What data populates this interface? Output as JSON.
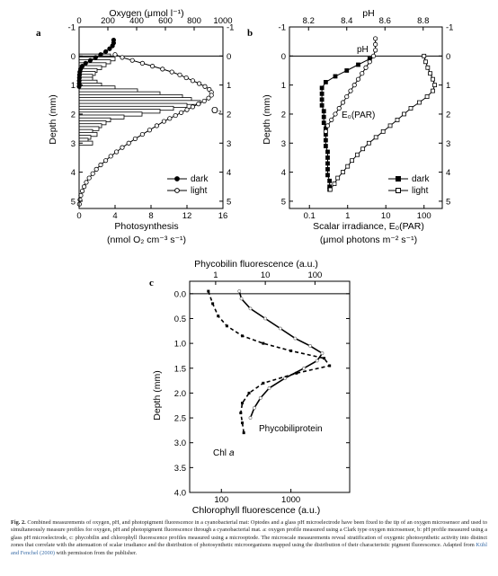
{
  "panels": {
    "a": {
      "label": "a",
      "top_axis_label": "Oxygen (μmol l⁻¹)",
      "bottom_axis_label_line1": "Photosynthesis",
      "bottom_axis_label_line2": "(nmol O₂ cm⁻³ s⁻¹)",
      "y_axis_label": "Depth (mm)",
      "annotation_o2": "O₂",
      "legend": [
        {
          "name": "dark",
          "marker": "filled"
        },
        {
          "name": "light",
          "marker": "open"
        }
      ],
      "chart_data": {
        "type": "line",
        "y_reversed": true,
        "ylim": [
          -1,
          5.25
        ],
        "y_ticks": [
          -1,
          0,
          1,
          2,
          3,
          4,
          5
        ],
        "x_top": {
          "label": "Oxygen (μmol l⁻¹)",
          "range": [
            0,
            1000
          ],
          "ticks": [
            0,
            200,
            400,
            600,
            800,
            1000
          ]
        },
        "x_bottom": {
          "label": "Photosynthesis (nmol O₂ cm⁻³ s⁻¹)",
          "range": [
            0,
            16
          ],
          "ticks": [
            0,
            4,
            8,
            12,
            16
          ]
        },
        "series": [
          {
            "name": "dark",
            "axis": "top",
            "marker": "filled",
            "depth": [
              -0.55,
              -0.45,
              -0.35,
              -0.25,
              -0.15,
              -0.05,
              0.05,
              0.15,
              0.25,
              0.35,
              0.45,
              0.55,
              0.65,
              0.75,
              0.85,
              0.95,
              1.05
            ],
            "value": [
              240,
              240,
              232,
              212,
              185,
              150,
              115,
              78,
              45,
              22,
              10,
              5,
              3,
              2,
              1,
              1,
              0
            ]
          },
          {
            "name": "light",
            "axis": "top",
            "marker": "open",
            "depth": [
              -0.05,
              0.05,
              0.15,
              0.25,
              0.35,
              0.45,
              0.55,
              0.65,
              0.75,
              0.85,
              0.95,
              1.05,
              1.15,
              1.25,
              1.35,
              1.45,
              1.55,
              1.65,
              1.75,
              1.85,
              1.95,
              2.05,
              2.15,
              2.25,
              2.4,
              2.55,
              2.7,
              2.85,
              3.0,
              3.15,
              3.3,
              3.45,
              3.6,
              3.75,
              3.9,
              4.05,
              4.2,
              4.35,
              4.5,
              4.65,
              4.8,
              4.95,
              5.1
            ],
            "value": [
              250,
              300,
              370,
              440,
              510,
              580,
              645,
              700,
              745,
              790,
              835,
              875,
              905,
              920,
              920,
              900,
              870,
              830,
              790,
              750,
              710,
              670,
              630,
              590,
              540,
              490,
              440,
              390,
              345,
              300,
              260,
              220,
              185,
              150,
              120,
              95,
              70,
              50,
              35,
              22,
              12,
              6,
              2
            ]
          },
          {
            "name": "Photosynthesis",
            "axis": "bottom",
            "type": "bar",
            "depth": [
              0,
              0.1,
              0.2,
              0.3,
              0.4,
              0.5,
              0.6,
              0.7,
              0.8,
              0.9,
              1.0,
              1.1,
              1.2,
              1.3,
              1.4,
              1.5,
              1.6,
              1.7,
              1.8,
              1.9,
              2.0,
              2.1,
              2.2,
              2.3,
              2.4,
              2.5,
              2.6,
              2.7,
              2.8,
              2.9,
              3.0
            ],
            "value": [
              3.5,
              4.0,
              3.5,
              3.0,
              2.5,
              2.0,
              1.8,
              1.5,
              1.5,
              2.0,
              2.5,
              4.0,
              6.5,
              9.0,
              11.5,
              12.5,
              13.5,
              12.0,
              10.5,
              9.0,
              7.0,
              5.0,
              3.5,
              3.0,
              2.5,
              2.2,
              1.5,
              2.0,
              1.3,
              1.0,
              1.5
            ]
          }
        ]
      }
    },
    "b": {
      "label": "b",
      "top_axis_label": "pH",
      "bottom_axis_label_line1": "Scalar irradiance, E₀(PAR)",
      "bottom_axis_label_line2": "(μmol photons m⁻² s⁻¹)",
      "y_axis_label": "Depth (mm)",
      "annotation_ph": "pH",
      "annotation_e0": "E₀(PAR)",
      "legend": [
        {
          "name": "dark",
          "marker": "filled"
        },
        {
          "name": "light",
          "marker": "open"
        }
      ],
      "chart_data": {
        "type": "line",
        "y_reversed": true,
        "ylim": [
          -1,
          5.25
        ],
        "y_ticks": [
          -1,
          0,
          1,
          2,
          3,
          4,
          5
        ],
        "x_top": {
          "label": "pH",
          "range": [
            8.1,
            8.9
          ],
          "ticks": [
            8.2,
            8.4,
            8.6,
            8.8
          ]
        },
        "x_bottom": {
          "label": "Scalar irradiance, E₀(PAR) (μmol photons m⁻² s⁻¹)",
          "scale": "log",
          "range": [
            0.03,
            300
          ],
          "tick_labels": [
            "0.1",
            "1",
            "10",
            "100"
          ],
          "tick_values": [
            0.1,
            1,
            10,
            100
          ]
        },
        "series": [
          {
            "name": "pH dark",
            "axis": "top",
            "marker": "filled",
            "depth": [
              0.1,
              0.3,
              0.5,
              0.7,
              0.9,
              1.1,
              1.3,
              1.5,
              1.7,
              1.9,
              2.1,
              2.3,
              2.5,
              2.7,
              2.9,
              3.1,
              3.3,
              3.5,
              3.7,
              3.9,
              4.1,
              4.3,
              4.5,
              4.6
            ],
            "value": [
              8.52,
              8.46,
              8.4,
              8.34,
              8.29,
              8.27,
              8.27,
              8.27,
              8.27,
              8.28,
              8.28,
              8.28,
              8.29,
              8.29,
              8.29,
              8.29,
              8.3,
              8.3,
              8.3,
              8.3,
              8.3,
              8.31,
              8.31,
              8.31
            ]
          },
          {
            "name": "pH light",
            "axis": "top",
            "marker": "open",
            "depth": [
              -0.6,
              -0.4,
              -0.2,
              0.0,
              0.2,
              0.4,
              0.6,
              0.8,
              1.0,
              1.2,
              1.4,
              1.6,
              1.8,
              2.0,
              2.2,
              2.4,
              2.6
            ],
            "value": [
              8.55,
              8.55,
              8.55,
              8.54,
              8.52,
              8.5,
              8.48,
              8.46,
              8.44,
              8.42,
              8.4,
              8.38,
              8.36,
              8.34,
              8.32,
              8.3,
              8.29
            ]
          },
          {
            "name": "E0(PAR)",
            "axis": "bottom",
            "marker": "open",
            "depth": [
              0.0,
              0.2,
              0.4,
              0.6,
              0.8,
              1.0,
              1.2,
              1.4,
              1.6,
              1.8,
              2.0,
              2.2,
              2.4,
              2.6,
              2.8,
              3.0,
              3.2,
              3.4,
              3.6,
              3.8,
              4.0,
              4.2,
              4.4,
              4.6
            ],
            "value": [
              100,
              110,
              125,
              145,
              170,
              190,
              170,
              120,
              75,
              45,
              30,
              20,
              13,
              8.5,
              5.5,
              3.6,
              2.5,
              1.8,
              1.3,
              1.0,
              0.75,
              0.55,
              0.45,
              0.35
            ]
          }
        ]
      }
    },
    "c": {
      "label": "c",
      "top_axis_label": "Phycobilin fluorescence (a.u.)",
      "bottom_axis_label": "Chlorophyll fluorescence (a.u.)",
      "y_axis_label": "Depth (mm)",
      "annotation_phyco": "Phycobiliprotein",
      "annotation_chl": "Chl",
      "annotation_chl_italic": "a",
      "chart_data": {
        "type": "line",
        "y_reversed": true,
        "ylim": [
          -0.25,
          4.0
        ],
        "y_ticks": [
          -0.0,
          0.5,
          1.0,
          1.5,
          2.0,
          2.5,
          3.0,
          3.5,
          4.0
        ],
        "y_tick_labels": [
          "0.0",
          "0.5",
          "1.0",
          "1.5",
          "2.0",
          "2.5",
          "3.0",
          "3.5",
          "4.0"
        ],
        "x_top": {
          "label": "Phycobilin fluorescence (a.u.)",
          "scale": "log",
          "range": [
            0.3,
            500
          ],
          "tick_labels": [
            "1",
            "10",
            "100"
          ],
          "tick_values": [
            1,
            10,
            100
          ]
        },
        "x_bottom": {
          "label": "Chlorophyll fluorescence (a.u.)",
          "scale": "log",
          "range": [
            35,
            7000
          ],
          "tick_labels": [
            "100",
            "1000"
          ],
          "tick_values": [
            100,
            1000
          ]
        },
        "series": [
          {
            "name": "Phycobiliprotein",
            "axis": "top",
            "style": "solid",
            "depth": [
              -0.05,
              0.1,
              0.3,
              0.5,
              0.7,
              0.9,
              1.05,
              1.2,
              1.35,
              1.5,
              1.7,
              1.9,
              2.1,
              2.3,
              2.5
            ],
            "value": [
              3,
              3.3,
              5,
              10,
              20,
              40,
              80,
              140,
              110,
              60,
              25,
              12,
              8,
              6,
              5
            ]
          },
          {
            "name": "Chl a",
            "axis": "bottom",
            "style": "dashed",
            "depth": [
              -0.05,
              0.2,
              0.45,
              0.65,
              0.85,
              1.0,
              1.15,
              1.3,
              1.45,
              1.6,
              1.8,
              2.0,
              2.2,
              2.4,
              2.6,
              2.8
            ],
            "value": [
              65,
              75,
              90,
              120,
              200,
              400,
              1000,
              3000,
              3600,
              1200,
              400,
              250,
              200,
              190,
              200,
              210
            ]
          }
        ]
      }
    }
  },
  "caption": {
    "fig_label": "Fig. 2.",
    "text": "Combined measurements of oxygen, pH, and photopigment fluorescence in a cyanobacterial mat: Optodes and a glass pH microelectrode have been fixed to the tip of an oxygen microsensor and used to simultaneously measure profiles for oxygen, pH and photopigment fluorescence through a cyanobacterial mat. a: oxygen profile measured using a Clark type oxygen microsensor, b: pH profile measured using a glass pH microelectrode, c: phycobilin and chlorophyll fluorescence profiles measured using a microoptode. The microscale measurements reveal stratification of oxygenic photosynthetic activity into distinct zones that correlate with the attenuation of scalar irradiance and the distribution of photosynthetic microorganisms mapped using the distribution of their characteristic pigment fluorescence. Adapted from",
    "source_link": "Kühl and Fenchel (2000)",
    "tail": "with permission from the publisher."
  }
}
